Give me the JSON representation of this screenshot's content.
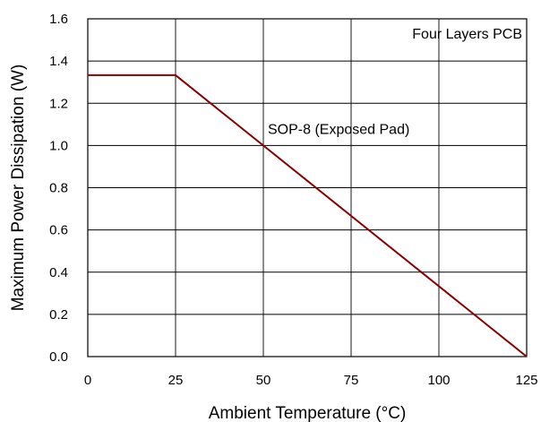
{
  "chart_data": {
    "type": "line",
    "xlabel": "Ambient Temperature (°C)",
    "ylabel": "Maximum Power Dissipation (W)",
    "xlim": [
      0,
      125
    ],
    "ylim": [
      0,
      1.6
    ],
    "x_ticks": [
      "0",
      "25",
      "50",
      "75",
      "100",
      "125"
    ],
    "y_ticks": [
      "0.0",
      "0.2",
      "0.4",
      "0.6",
      "0.8",
      "1.0",
      "1.2",
      "1.4",
      "1.6"
    ],
    "grid": true,
    "series": [
      {
        "name": "SOP-8 (Exposed Pad)",
        "color": "#8b0000",
        "x": [
          0,
          25,
          125
        ],
        "y": [
          1.333,
          1.333,
          0.0
        ]
      }
    ],
    "annotations": [
      {
        "text": "Four Layers PCB",
        "position": "top-right"
      },
      {
        "text": "SOP-8 (Exposed Pad)",
        "x": 50,
        "y": 1.0
      }
    ]
  }
}
